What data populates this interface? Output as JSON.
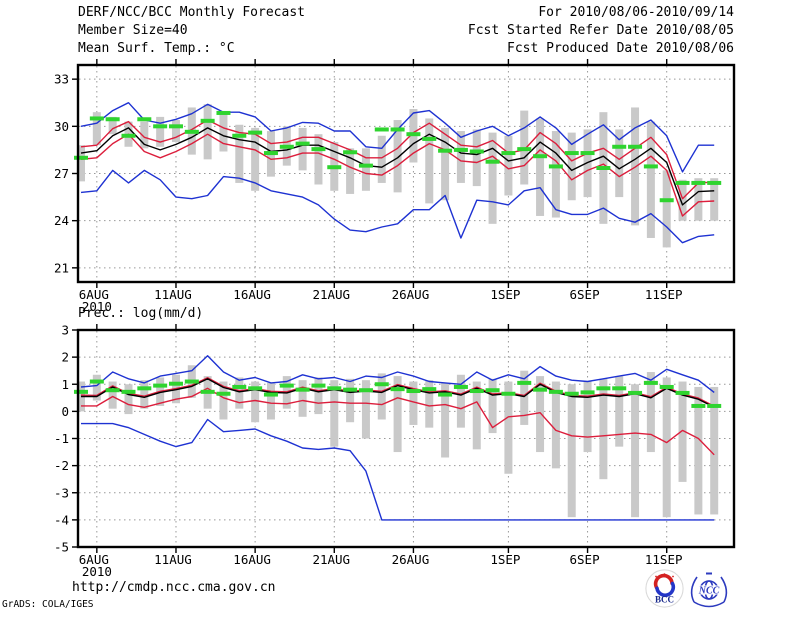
{
  "header": {
    "left_lines": [
      "DERF/NCC/BCC Monthly Forecast",
      "Member Size=40"
    ],
    "right_lines": [
      "For 2010/08/06-2010/09/14",
      "Fcst Started Refer Date 2010/08/05",
      "Fcst Produced Date 2010/08/06"
    ]
  },
  "footer": {
    "url": "http://cmdp.ncc.cma.gov.cn",
    "credit": "GrADS: COLA/IGES"
  },
  "logos": {
    "bcc_label": "BCC",
    "ncc_label": "NCC"
  },
  "colors": {
    "blue": "#1e32d2",
    "red": "#dc1e3c",
    "black": "#000000",
    "green": "#2fd42f",
    "bar_gray": "#c9c9c9",
    "grid_gray": "#999999",
    "frame": "#000000"
  },
  "chart_data": [
    {
      "type": "line",
      "title": "Mean Surf. Temp.: °C",
      "ylim": [
        20.1,
        33.9
      ],
      "yticks": [
        33,
        30,
        27,
        24,
        21
      ],
      "xticks": {
        "positions": [
          1,
          6,
          11,
          16,
          21,
          27,
          32,
          37
        ],
        "labels": [
          "6AUG",
          "11AUG",
          "16AUG",
          "21AUG",
          "26AUG",
          "1SEP",
          "6SEP",
          "11SEP"
        ]
      },
      "year_label": "2010",
      "grid": true,
      "legend": "none",
      "bars": {
        "name": "ensemble-spread-bar",
        "lo": [
          26.5,
          28.8,
          29.5,
          28.7,
          28.6,
          28.7,
          29.0,
          28.2,
          27.9,
          28.4,
          26.4,
          25.9,
          26.8,
          27.5,
          27.2,
          26.3,
          25.9,
          25.7,
          25.9,
          26.4,
          25.8,
          27.7,
          25.1,
          25.3,
          26.4,
          26.2,
          23.8,
          25.6,
          26.3,
          24.3,
          24.2,
          25.3,
          25.5,
          23.8,
          25.5,
          23.7,
          22.9,
          22.3,
          24.0,
          24.0,
          24.0
        ],
        "hi": [
          28.8,
          30.9,
          30.6,
          30.3,
          30.3,
          30.6,
          30.4,
          31.2,
          31.4,
          30.9,
          30.1,
          29.9,
          29.7,
          30.0,
          29.9,
          29.5,
          29.0,
          28.6,
          28.6,
          29.4,
          30.4,
          31.1,
          30.5,
          29.9,
          29.7,
          29.8,
          29.6,
          29.4,
          31.0,
          30.5,
          29.7,
          29.6,
          29.8,
          30.9,
          29.8,
          31.2,
          30.3,
          27.2,
          26.6,
          26.7,
          26.7
        ]
      },
      "series": [
        {
          "name": "ensemble-max",
          "color": "blue",
          "values": [
            30.0,
            30.2,
            31.0,
            31.5,
            30.4,
            30.2,
            30.45,
            30.8,
            31.4,
            30.9,
            30.9,
            30.6,
            29.7,
            29.9,
            30.25,
            30.2,
            29.7,
            29.7,
            28.7,
            28.6,
            29.8,
            30.85,
            31.0,
            30.2,
            29.3,
            29.7,
            30.0,
            29.4,
            29.9,
            30.6,
            29.9,
            28.85,
            29.5,
            30.1,
            29.15,
            29.9,
            30.4,
            29.4,
            27.1,
            28.8,
            28.8
          ]
        },
        {
          "name": "ensemble-plus-std",
          "color": "red",
          "values": [
            28.7,
            28.8,
            29.85,
            30.3,
            29.3,
            29.0,
            29.3,
            29.8,
            30.4,
            29.9,
            29.6,
            29.5,
            28.9,
            29.0,
            29.3,
            29.3,
            28.9,
            28.5,
            28.0,
            28.0,
            28.6,
            29.6,
            30.2,
            29.5,
            28.8,
            28.7,
            29.1,
            28.3,
            28.5,
            29.6,
            28.9,
            27.8,
            28.3,
            28.6,
            27.9,
            28.6,
            29.3,
            28.2,
            25.4,
            26.4,
            26.45
          ]
        },
        {
          "name": "ensemble-mean",
          "color": "black",
          "values": [
            28.3,
            28.45,
            29.4,
            29.9,
            28.85,
            28.5,
            28.85,
            29.3,
            29.9,
            29.4,
            29.15,
            29.0,
            28.4,
            28.5,
            28.8,
            28.8,
            28.4,
            28.0,
            27.5,
            27.4,
            28.0,
            28.9,
            29.5,
            29.0,
            28.3,
            28.2,
            28.6,
            27.8,
            28.0,
            29.0,
            28.3,
            27.2,
            27.7,
            28.1,
            27.3,
            27.9,
            28.6,
            27.7,
            25.0,
            25.85,
            25.9
          ]
        },
        {
          "name": "ensemble-minus-std",
          "color": "red",
          "values": [
            27.9,
            28.0,
            28.9,
            29.5,
            28.4,
            28.0,
            28.4,
            28.9,
            29.5,
            28.9,
            28.7,
            28.5,
            27.9,
            28.0,
            28.3,
            28.3,
            27.9,
            27.4,
            27.0,
            26.9,
            27.5,
            28.3,
            28.9,
            28.5,
            27.8,
            27.7,
            28.1,
            27.3,
            27.5,
            28.5,
            27.8,
            26.6,
            27.2,
            27.6,
            26.8,
            27.4,
            28.1,
            27.2,
            24.3,
            25.2,
            25.25
          ]
        },
        {
          "name": "ensemble-min",
          "color": "blue",
          "values": [
            25.8,
            25.9,
            27.2,
            26.4,
            27.2,
            26.6,
            25.5,
            25.4,
            25.6,
            26.8,
            26.7,
            26.4,
            25.9,
            25.7,
            25.5,
            25.0,
            24.1,
            23.4,
            23.3,
            23.6,
            23.8,
            24.7,
            24.7,
            25.6,
            22.9,
            25.3,
            25.2,
            25.0,
            25.9,
            26.1,
            24.7,
            24.4,
            24.4,
            24.8,
            24.15,
            23.9,
            24.45,
            23.6,
            22.6,
            23.0,
            23.1
          ]
        }
      ],
      "obs": {
        "name": "observation-dash",
        "values": [
          28.0,
          30.5,
          30.45,
          29.4,
          30.45,
          30.0,
          30.0,
          29.65,
          30.35,
          30.85,
          29.4,
          29.6,
          28.3,
          28.7,
          28.9,
          28.55,
          27.4,
          28.35,
          27.5,
          29.8,
          29.8,
          29.5,
          29.2,
          28.45,
          28.5,
          28.4,
          27.75,
          28.3,
          28.55,
          28.1,
          27.45,
          28.3,
          28.3,
          27.35,
          28.7,
          28.7,
          27.45,
          25.3,
          26.4,
          26.4,
          26.4
        ]
      }
    },
    {
      "type": "line",
      "title": "Prec.: log(mm/d)",
      "ylim": [
        -5,
        3
      ],
      "yticks": [
        3,
        2,
        1,
        0,
        -1,
        -2,
        -3,
        -4,
        -5
      ],
      "xticks": {
        "positions": [
          1,
          6,
          11,
          16,
          21,
          27,
          32,
          37
        ],
        "labels": [
          "6AUG",
          "11AUG",
          "16AUG",
          "21AUG",
          "26AUG",
          "1SEP",
          "6SEP",
          "11SEP"
        ]
      },
      "year_label": "2010",
      "grid": true,
      "legend": "none",
      "bars": {
        "name": "ensemble-spread-bar",
        "lo": [
          0.0,
          0.4,
          0.1,
          -0.1,
          0.1,
          0.2,
          0.3,
          0.5,
          0.1,
          -0.3,
          0.1,
          -0.4,
          -0.3,
          0.1,
          -0.2,
          -0.1,
          -1.3,
          -0.4,
          -1.0,
          -0.3,
          -1.5,
          -0.5,
          -0.6,
          -1.7,
          -0.6,
          -1.4,
          -0.8,
          -2.3,
          -0.5,
          -1.5,
          -2.1,
          -3.9,
          -1.5,
          -2.5,
          -1.3,
          -3.9,
          -1.5,
          -3.9,
          -2.6,
          -3.8,
          -3.8
        ],
        "hi": [
          1.1,
          1.35,
          1.1,
          1.0,
          1.15,
          1.25,
          1.35,
          1.7,
          1.3,
          1.1,
          1.25,
          1.1,
          1.05,
          1.3,
          1.15,
          1.25,
          1.15,
          1.2,
          1.15,
          1.4,
          1.3,
          1.1,
          1.15,
          1.05,
          1.35,
          1.1,
          1.2,
          1.1,
          1.5,
          1.3,
          1.1,
          1.0,
          1.1,
          1.2,
          1.3,
          1.0,
          1.45,
          1.25,
          1.1,
          0.9,
          0.9
        ]
      },
      "series": [
        {
          "name": "ensemble-max",
          "color": "blue",
          "values": [
            0.9,
            0.95,
            1.45,
            1.2,
            1.05,
            1.3,
            1.4,
            1.5,
            2.05,
            1.45,
            1.15,
            1.25,
            1.05,
            1.1,
            1.35,
            1.2,
            1.25,
            1.1,
            1.3,
            1.25,
            1.45,
            1.3,
            1.1,
            1.05,
            1.0,
            1.45,
            1.15,
            1.35,
            1.2,
            1.65,
            1.3,
            1.15,
            1.1,
            1.2,
            1.3,
            1.4,
            1.15,
            1.55,
            1.35,
            1.15,
            0.7
          ]
        },
        {
          "name": "ensemble-plus-std",
          "color": "red",
          "values": [
            0.6,
            0.59,
            0.94,
            0.66,
            0.56,
            0.74,
            0.84,
            0.96,
            1.24,
            0.92,
            0.76,
            0.84,
            0.74,
            0.72,
            0.89,
            0.76,
            0.84,
            0.74,
            0.79,
            0.74,
            0.99,
            0.84,
            0.72,
            0.76,
            0.64,
            0.89,
            0.64,
            0.69,
            0.59,
            1.04,
            0.74,
            0.59,
            0.56,
            0.64,
            0.59,
            0.69,
            0.54,
            0.89,
            0.64,
            0.49,
            0.19
          ]
        },
        {
          "name": "ensemble-mean",
          "color": "black",
          "values": [
            0.55,
            0.55,
            0.9,
            0.62,
            0.52,
            0.7,
            0.8,
            0.92,
            1.2,
            0.88,
            0.72,
            0.8,
            0.7,
            0.68,
            0.85,
            0.72,
            0.8,
            0.7,
            0.75,
            0.7,
            0.95,
            0.8,
            0.68,
            0.72,
            0.6,
            0.85,
            0.6,
            0.65,
            0.55,
            1.0,
            0.7,
            0.55,
            0.52,
            0.6,
            0.55,
            0.65,
            0.5,
            0.85,
            0.6,
            0.45,
            0.15
          ]
        },
        {
          "name": "ensemble-minus-std",
          "color": "red",
          "values": [
            0.2,
            0.2,
            0.55,
            0.25,
            0.15,
            0.3,
            0.45,
            0.55,
            0.85,
            0.5,
            0.32,
            0.4,
            0.3,
            0.28,
            0.4,
            0.3,
            0.35,
            0.3,
            0.3,
            0.25,
            0.5,
            0.35,
            0.2,
            0.25,
            0.1,
            0.35,
            -0.6,
            -0.2,
            -0.15,
            -0.05,
            -0.7,
            -0.9,
            -0.95,
            -0.9,
            -0.85,
            -0.8,
            -0.85,
            -1.15,
            -0.7,
            -1.0,
            -1.6
          ]
        },
        {
          "name": "ensemble-min",
          "color": "blue",
          "values": [
            -0.45,
            -0.45,
            -0.45,
            -0.6,
            -0.85,
            -1.1,
            -1.3,
            -1.15,
            -0.3,
            -0.75,
            -0.7,
            -0.65,
            -0.9,
            -1.1,
            -1.35,
            -1.4,
            -1.35,
            -1.45,
            -2.2,
            -4.0,
            -4.0,
            -4.0,
            -4.0,
            -4.0,
            -4.0,
            -4.0,
            -4.0,
            -4.0,
            -4.0,
            -4.0,
            -4.0,
            -4.0,
            -4.0,
            -4.0,
            -4.0,
            -4.0,
            -4.0,
            -4.0,
            -4.0,
            -4.0,
            -4.0
          ]
        }
      ],
      "obs": {
        "name": "observation-dash",
        "values": [
          0.72,
          1.1,
          0.78,
          0.72,
          0.85,
          0.95,
          1.02,
          1.1,
          0.72,
          0.65,
          0.9,
          0.85,
          0.62,
          0.95,
          0.8,
          0.95,
          0.85,
          0.8,
          0.78,
          1.0,
          0.82,
          0.75,
          0.82,
          0.62,
          0.9,
          0.75,
          0.78,
          0.65,
          1.05,
          0.8,
          0.72,
          0.65,
          0.7,
          0.85,
          0.85,
          0.68,
          1.05,
          0.9,
          0.68,
          0.2,
          0.2
        ]
      }
    }
  ]
}
